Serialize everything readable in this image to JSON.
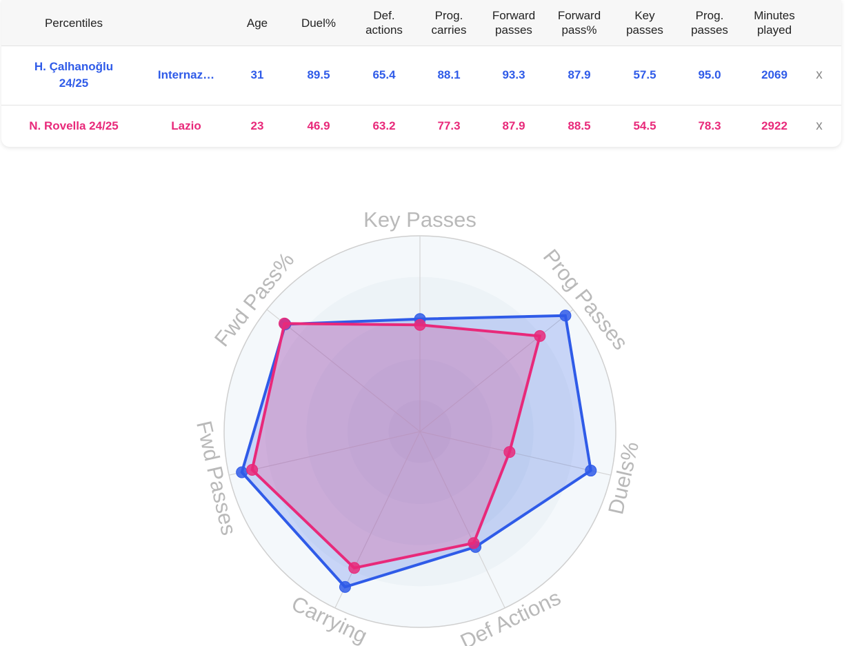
{
  "table": {
    "headers": {
      "percentiles": "Percentiles",
      "age": "Age",
      "duel": "Duel%",
      "def_actions": "Def.\nactions",
      "prog_carries": "Prog.\ncarries",
      "forward_passes": "Forward\npasses",
      "forward_pass_pct": "Forward\npass%",
      "key_passes": "Key\npasses",
      "prog_passes": "Prog.\npasses",
      "minutes": "Minutes\nplayed"
    },
    "rows": [
      {
        "player": "H. Çalhanoğlu\n24/25",
        "team": "Internaz…",
        "age": "31",
        "duel": "89.5",
        "def_actions": "65.4",
        "prog_carries": "88.1",
        "forward_passes": "93.3",
        "forward_pass_pct": "87.9",
        "key_passes": "57.5",
        "prog_passes": "95.0",
        "minutes": "2069",
        "remove": "x",
        "color": "#2f5be8"
      },
      {
        "player": "N. Rovella 24/25",
        "team": "Lazio",
        "age": "23",
        "duel": "46.9",
        "def_actions": "63.2",
        "prog_carries": "77.3",
        "forward_passes": "87.9",
        "forward_pass_pct": "88.5",
        "key_passes": "54.5",
        "prog_passes": "78.3",
        "minutes": "2922",
        "remove": "x",
        "color": "#e8297a"
      }
    ]
  },
  "chart_data": {
    "type": "radar",
    "axes": [
      "Key Passes",
      "Prog Passes",
      "Duels%",
      "Def Actions",
      "Carrying",
      "Fwd Passes",
      "Fwd Pass%"
    ],
    "range": [
      0,
      100
    ],
    "grid": true,
    "series": [
      {
        "name": "H. Çalhanoğlu 24/25",
        "color": "#2f5be8",
        "values": [
          57.5,
          95.0,
          89.5,
          65.4,
          88.1,
          93.3,
          87.9
        ]
      },
      {
        "name": "N. Rovella 24/25",
        "color": "#e8297a",
        "values": [
          54.5,
          78.3,
          46.9,
          63.2,
          77.3,
          87.9,
          88.5
        ]
      }
    ]
  }
}
